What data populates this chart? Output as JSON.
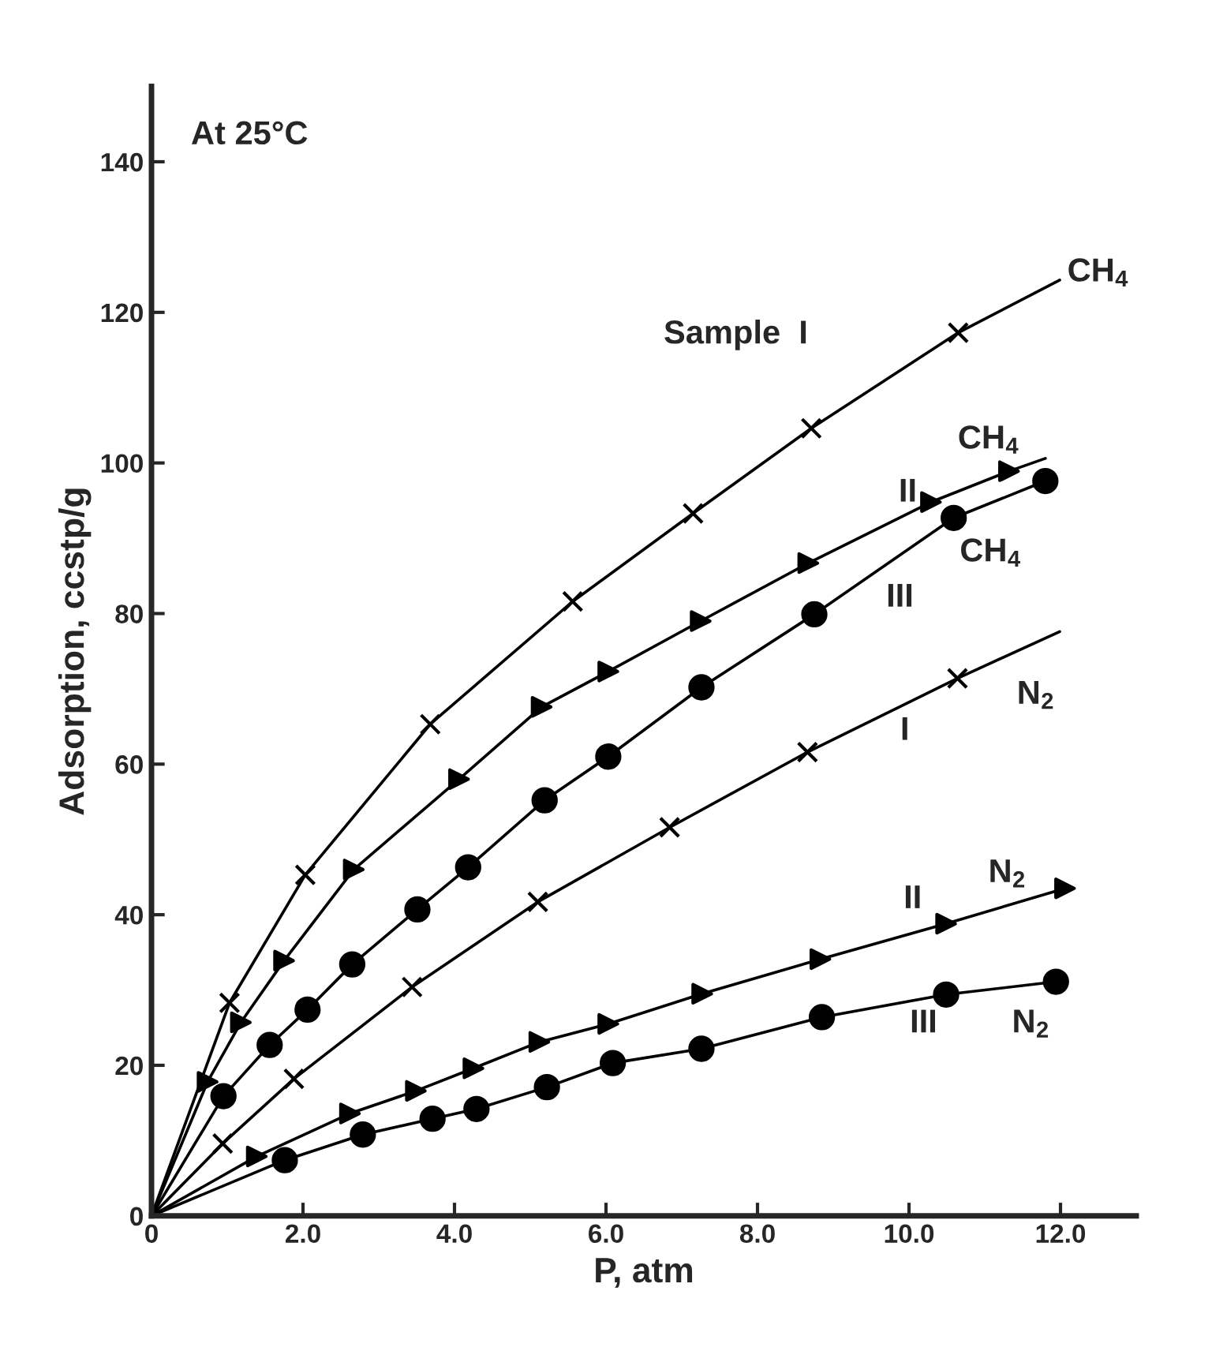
{
  "chart_data": {
    "type": "scatter",
    "xlabel": "P, atm",
    "ylabel": "Adsorption, ccstp/g",
    "xlim": [
      0,
      13
    ],
    "ylim": [
      0,
      150
    ],
    "xticks": [
      0,
      {
        "value": 2,
        "label": "2.0"
      },
      {
        "value": 4,
        "label": "4.0"
      },
      {
        "value": 6,
        "label": "6.0"
      },
      {
        "value": 8,
        "label": "8.0"
      },
      {
        "value": 10,
        "label": "10.0"
      },
      {
        "value": 12,
        "label": "12.0"
      }
    ],
    "yticks": [
      0,
      20,
      40,
      60,
      80,
      100,
      120,
      140
    ],
    "grid": false,
    "legend": false,
    "line_style": "solid",
    "series": [
      {
        "type": "line",
        "marker": "none",
        "color": "#000000",
        "x": [
          0,
          1.03,
          2.03,
          3.68,
          5.56,
          7.15,
          8.71,
          10.65,
          11.99
        ],
        "values": [
          0,
          28.3,
          45.3,
          65.3,
          81.6,
          93.3,
          104.6,
          117.3,
          124.3
        ]
      },
      {
        "marker": "cross",
        "color": "#000000",
        "x": [
          1.03,
          2.03,
          3.68,
          5.56,
          7.15,
          8.71,
          10.65
        ],
        "values": [
          28.3,
          45.3,
          65.3,
          81.6,
          93.3,
          104.6,
          117.3
        ]
      },
      {
        "type": "line",
        "marker": "none",
        "color": "#000000",
        "x": [
          0,
          0.74,
          1.18,
          1.75,
          2.67,
          4.06,
          5.15,
          6.03,
          7.25,
          8.67,
          10.29,
          11.32,
          11.8
        ],
        "values": [
          0,
          17.8,
          25.7,
          33.9,
          46.0,
          58.0,
          67.6,
          72.3,
          79.0,
          86.7,
          94.8,
          98.9,
          100.6
        ]
      },
      {
        "marker": "triangle",
        "color": "#000000",
        "x": [
          0.74,
          1.18,
          1.75,
          2.67,
          4.06,
          5.15,
          6.03,
          7.25,
          8.67,
          10.29,
          11.32
        ],
        "values": [
          17.8,
          25.7,
          33.9,
          46.0,
          58.0,
          67.6,
          72.3,
          79.0,
          86.7,
          94.8,
          98.9
        ]
      },
      {
        "type": "line",
        "marker": "none",
        "color": "#000000",
        "x": [
          0,
          0.95,
          1.56,
          2.06,
          2.65,
          3.51,
          4.18,
          5.19,
          6.03,
          7.26,
          8.75,
          10.59,
          11.8
        ],
        "values": [
          0,
          15.9,
          22.7,
          27.4,
          33.4,
          40.7,
          46.3,
          55.2,
          61.0,
          70.2,
          79.9,
          92.7,
          97.6
        ]
      },
      {
        "marker": "circle",
        "color": "#000000",
        "x": [
          0.95,
          1.56,
          2.06,
          2.65,
          3.51,
          4.18,
          5.19,
          6.03,
          7.26,
          8.75,
          10.59,
          11.8
        ],
        "values": [
          15.9,
          22.7,
          27.4,
          33.4,
          40.7,
          46.3,
          55.2,
          61.0,
          70.2,
          79.9,
          92.7,
          97.6
        ]
      },
      {
        "type": "line",
        "marker": "none",
        "color": "#000000",
        "x": [
          0,
          0.94,
          1.88,
          3.44,
          5.1,
          6.84,
          8.66,
          10.64,
          11.99
        ],
        "values": [
          0,
          9.6,
          18.2,
          30.4,
          41.7,
          51.6,
          61.6,
          71.4,
          77.6
        ]
      },
      {
        "marker": "cross",
        "color": "#000000",
        "x": [
          0.94,
          1.88,
          3.44,
          5.1,
          6.84,
          8.66,
          10.64
        ],
        "values": [
          9.6,
          18.2,
          30.4,
          41.7,
          51.6,
          61.6,
          71.4
        ]
      },
      {
        "type": "line",
        "marker": "none",
        "color": "#000000",
        "x": [
          0,
          1.39,
          2.62,
          3.49,
          4.25,
          5.12,
          6.03,
          7.27,
          8.83,
          10.49,
          12.06
        ],
        "values": [
          0,
          7.9,
          13.6,
          16.6,
          19.6,
          23.1,
          25.5,
          29.5,
          34.1,
          38.8,
          43.5
        ]
      },
      {
        "marker": "triangle",
        "color": "#000000",
        "x": [
          1.39,
          2.62,
          3.49,
          4.25,
          5.12,
          6.03,
          7.27,
          8.83,
          10.49,
          12.06
        ],
        "values": [
          7.9,
          13.6,
          16.6,
          19.6,
          23.1,
          25.5,
          29.5,
          34.1,
          38.8,
          43.5
        ]
      },
      {
        "type": "line",
        "marker": "none",
        "color": "#000000",
        "x": [
          0,
          1.76,
          2.79,
          3.71,
          4.29,
          5.22,
          6.09,
          7.26,
          8.85,
          10.49,
          11.94
        ],
        "values": [
          0,
          7.4,
          10.8,
          12.9,
          14.2,
          17.1,
          20.3,
          22.2,
          26.4,
          29.4,
          31.1
        ]
      },
      {
        "marker": "circle",
        "color": "#000000",
        "x": [
          1.76,
          2.79,
          3.71,
          4.29,
          5.22,
          6.09,
          7.26,
          8.85,
          10.49,
          11.94
        ],
        "values": [
          7.4,
          10.8,
          12.9,
          14.2,
          17.1,
          20.3,
          22.2,
          26.4,
          29.4,
          31.1
        ]
      }
    ],
    "annotations": [
      "At 25°C",
      "Sample  I",
      "CH$_{4}$",
      "CH$_{4}$",
      "II",
      "CH$_{4}$",
      "III",
      "N$_{2}$",
      "I",
      "N$_{2}$",
      "II",
      "N$_{2}$",
      "III"
    ]
  }
}
